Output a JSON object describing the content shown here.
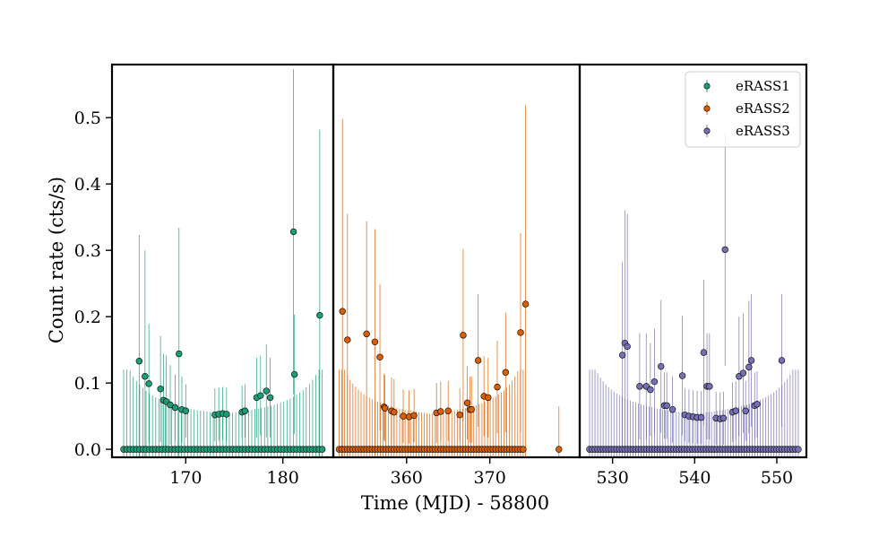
{
  "chart_data": {
    "type": "scatter",
    "title": "",
    "xlabel": "Time (MJD) - 58800",
    "ylabel": "Count rate (cts/s)",
    "ylim": [
      -0.012,
      0.58
    ],
    "yticks": [
      0.0,
      0.1,
      0.2,
      0.3,
      0.4,
      0.5
    ],
    "ytick_labels": [
      "0.0",
      "0.1",
      "0.2",
      "0.3",
      "0.4",
      "0.5"
    ],
    "legend": {
      "placement": "top-right",
      "entries": [
        "eRASS1",
        "eRASS2",
        "eRASS3"
      ]
    },
    "colors": {
      "eRASS1": "#1b9e77",
      "eRASS2": "#d95f02",
      "eRASS3": "#7570b3"
    },
    "panels": [
      {
        "name": "eRASS1",
        "xlim": [
          162.4,
          185.2
        ],
        "xticks": [
          170,
          180
        ],
        "xtick_labels": [
          "170",
          "180"
        ],
        "points": [
          {
            "x": 165.2,
            "y": 0.133,
            "err": 0.19
          },
          {
            "x": 165.8,
            "y": 0.11,
            "err": 0.19
          },
          {
            "x": 166.2,
            "y": 0.099,
            "err": 0.09
          },
          {
            "x": 167.4,
            "y": 0.091,
            "err": 0.08
          },
          {
            "x": 167.7,
            "y": 0.074,
            "err": 0.07
          },
          {
            "x": 168.0,
            "y": 0.072,
            "err": 0.07
          },
          {
            "x": 168.4,
            "y": 0.067,
            "err": 0.06
          },
          {
            "x": 168.9,
            "y": 0.063,
            "err": 0.05
          },
          {
            "x": 169.3,
            "y": 0.144,
            "err": 0.19
          },
          {
            "x": 169.6,
            "y": 0.06,
            "err": 0.05
          },
          {
            "x": 170.0,
            "y": 0.058,
            "err": 0.04
          },
          {
            "x": 173.0,
            "y": 0.052,
            "err": 0.04
          },
          {
            "x": 173.4,
            "y": 0.053,
            "err": 0.04
          },
          {
            "x": 173.8,
            "y": 0.054,
            "err": 0.04
          },
          {
            "x": 174.2,
            "y": 0.053,
            "err": 0.04
          },
          {
            "x": 175.8,
            "y": 0.056,
            "err": 0.04
          },
          {
            "x": 176.1,
            "y": 0.058,
            "err": 0.04
          },
          {
            "x": 177.3,
            "y": 0.078,
            "err": 0.06
          },
          {
            "x": 177.7,
            "y": 0.081,
            "err": 0.06
          },
          {
            "x": 178.3,
            "y": 0.088,
            "err": 0.07
          },
          {
            "x": 178.7,
            "y": 0.078,
            "err": 0.06
          },
          {
            "x": 181.1,
            "y": 0.328,
            "err": 0.245
          },
          {
            "x": 181.2,
            "y": 0.113,
            "err": 0.09
          },
          {
            "x": 183.8,
            "y": 0.202,
            "err": 0.28
          }
        ],
        "zeros": {
          "start": 163.6,
          "end": 184.3,
          "step": 0.33
        }
      },
      {
        "name": "eRASS2",
        "xlim": [
          351.2,
          380.8
        ],
        "xticks": [
          360,
          370
        ],
        "xtick_labels": [
          "360",
          "370"
        ],
        "points": [
          {
            "x": 352.3,
            "y": 0.208,
            "err": 0.29
          },
          {
            "x": 352.9,
            "y": 0.165,
            "err": 0.19
          },
          {
            "x": 355.2,
            "y": 0.174,
            "err": 0.17
          },
          {
            "x": 356.2,
            "y": 0.162,
            "err": 0.17
          },
          {
            "x": 356.8,
            "y": 0.139,
            "err": 0.11
          },
          {
            "x": 357.3,
            "y": 0.064,
            "err": 0.05
          },
          {
            "x": 357.4,
            "y": 0.062,
            "err": 0.05
          },
          {
            "x": 358.2,
            "y": 0.058,
            "err": 0.05
          },
          {
            "x": 358.5,
            "y": 0.056,
            "err": 0.05
          },
          {
            "x": 359.6,
            "y": 0.05,
            "err": 0.04
          },
          {
            "x": 360.3,
            "y": 0.049,
            "err": 0.04
          },
          {
            "x": 360.9,
            "y": 0.051,
            "err": 0.04
          },
          {
            "x": 363.6,
            "y": 0.055,
            "err": 0.045
          },
          {
            "x": 364.1,
            "y": 0.057,
            "err": 0.045
          },
          {
            "x": 365.0,
            "y": 0.058,
            "err": 0.045
          },
          {
            "x": 366.4,
            "y": 0.052,
            "err": 0.04
          },
          {
            "x": 366.8,
            "y": 0.172,
            "err": 0.13
          },
          {
            "x": 367.3,
            "y": 0.07,
            "err": 0.055
          },
          {
            "x": 367.6,
            "y": 0.06,
            "err": 0.05
          },
          {
            "x": 367.8,
            "y": 0.06,
            "err": 0.05
          },
          {
            "x": 368.6,
            "y": 0.134,
            "err": 0.1
          },
          {
            "x": 369.3,
            "y": 0.08,
            "err": 0.06
          },
          {
            "x": 369.8,
            "y": 0.078,
            "err": 0.06
          },
          {
            "x": 370.9,
            "y": 0.094,
            "err": 0.07
          },
          {
            "x": 371.9,
            "y": 0.116,
            "err": 0.09
          },
          {
            "x": 373.7,
            "y": 0.176,
            "err": 0.15
          },
          {
            "x": 374.3,
            "y": 0.219,
            "err": 0.3
          }
        ],
        "zeros": {
          "start": 351.9,
          "end": 374.1,
          "step": 0.33
        },
        "extra_zeros": [
          {
            "x": 378.3,
            "err": 0.065
          }
        ]
      },
      {
        "name": "eRASS3",
        "xlim": [
          526.0,
          553.6
        ],
        "xticks": [
          530,
          540,
          550
        ],
        "xtick_labels": [
          "530",
          "540",
          "550"
        ],
        "points": [
          {
            "x": 531.2,
            "y": 0.142,
            "err": 0.14
          },
          {
            "x": 531.5,
            "y": 0.16,
            "err": 0.2
          },
          {
            "x": 531.8,
            "y": 0.155,
            "err": 0.2
          },
          {
            "x": 533.3,
            "y": 0.095,
            "err": 0.08
          },
          {
            "x": 534.1,
            "y": 0.095,
            "err": 0.08
          },
          {
            "x": 534.6,
            "y": 0.09,
            "err": 0.07
          },
          {
            "x": 535.1,
            "y": 0.102,
            "err": 0.08
          },
          {
            "x": 535.9,
            "y": 0.125,
            "err": 0.1
          },
          {
            "x": 536.3,
            "y": 0.066,
            "err": 0.05
          },
          {
            "x": 536.6,
            "y": 0.066,
            "err": 0.05
          },
          {
            "x": 537.3,
            "y": 0.06,
            "err": 0.05
          },
          {
            "x": 538.5,
            "y": 0.111,
            "err": 0.09
          },
          {
            "x": 538.8,
            "y": 0.052,
            "err": 0.04
          },
          {
            "x": 539.3,
            "y": 0.05,
            "err": 0.04
          },
          {
            "x": 539.8,
            "y": 0.049,
            "err": 0.04
          },
          {
            "x": 540.3,
            "y": 0.048,
            "err": 0.04
          },
          {
            "x": 540.8,
            "y": 0.048,
            "err": 0.04
          },
          {
            "x": 541.1,
            "y": 0.146,
            "err": 0.11
          },
          {
            "x": 541.5,
            "y": 0.095,
            "err": 0.08
          },
          {
            "x": 541.8,
            "y": 0.095,
            "err": 0.08
          },
          {
            "x": 542.6,
            "y": 0.047,
            "err": 0.04
          },
          {
            "x": 543.1,
            "y": 0.046,
            "err": 0.04
          },
          {
            "x": 543.5,
            "y": 0.047,
            "err": 0.04
          },
          {
            "x": 543.7,
            "y": 0.301,
            "err": 0.175
          },
          {
            "x": 544.6,
            "y": 0.056,
            "err": 0.045
          },
          {
            "x": 545.0,
            "y": 0.058,
            "err": 0.045
          },
          {
            "x": 545.4,
            "y": 0.11,
            "err": 0.09
          },
          {
            "x": 545.9,
            "y": 0.115,
            "err": 0.09
          },
          {
            "x": 546.2,
            "y": 0.058,
            "err": 0.045
          },
          {
            "x": 546.6,
            "y": 0.124,
            "err": 0.1
          },
          {
            "x": 546.9,
            "y": 0.134,
            "err": 0.1
          },
          {
            "x": 547.3,
            "y": 0.066,
            "err": 0.05
          },
          {
            "x": 547.6,
            "y": 0.068,
            "err": 0.05
          },
          {
            "x": 550.6,
            "y": 0.134,
            "err": 0.1
          }
        ],
        "zeros": {
          "start": 527.2,
          "end": 552.7,
          "step": 0.33
        }
      }
    ]
  }
}
